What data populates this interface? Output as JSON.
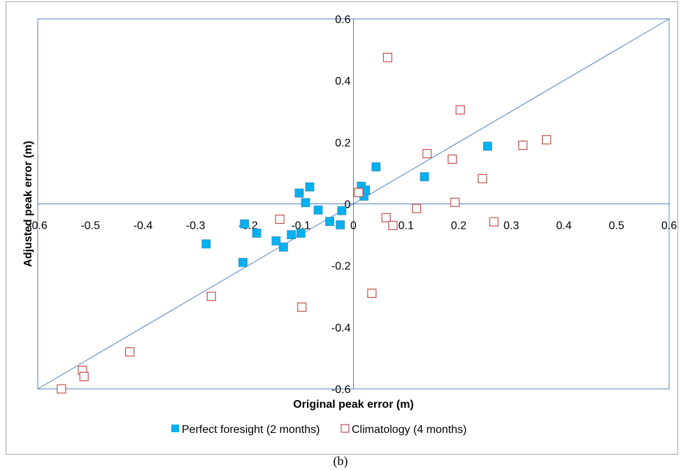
{
  "chart_data": {
    "type": "scatter",
    "xlabel": "Original peak error (m)",
    "ylabel": "Adjusted peak error (m)",
    "xlim": [
      -0.6,
      0.6
    ],
    "ylim": [
      -0.6,
      0.6
    ],
    "x_ticks": [
      "-0.6",
      "-0.5",
      "-0.4",
      "-0.3",
      "-0.2",
      "-0.1",
      "0",
      "0.1",
      "0.2",
      "0.3",
      "0.4",
      "0.5",
      "0.6"
    ],
    "y_ticks": [
      "-0.6",
      "-0.4",
      "-0.2",
      "0",
      "0.2",
      "0.4",
      "0.6"
    ],
    "legend_position": "bottom",
    "reference_line": {
      "x": [
        -0.6,
        0.6
      ],
      "y": [
        -0.6,
        0.6
      ],
      "color": "#4f81bd"
    },
    "series": [
      {
        "name": "Perfect foresight (2 months)",
        "marker": "filled-square",
        "color": "#00b0f0",
        "points": [
          [
            -0.28,
            -0.13
          ],
          [
            -0.21,
            -0.19
          ],
          [
            -0.207,
            -0.065
          ],
          [
            -0.184,
            -0.095
          ],
          [
            -0.147,
            -0.12
          ],
          [
            -0.133,
            -0.14
          ],
          [
            -0.118,
            -0.1
          ],
          [
            -0.1,
            -0.095
          ],
          [
            -0.103,
            0.035
          ],
          [
            -0.091,
            0.004
          ],
          [
            -0.083,
            0.055
          ],
          [
            -0.067,
            -0.02
          ],
          [
            -0.045,
            -0.057
          ],
          [
            -0.025,
            -0.068
          ],
          [
            -0.022,
            -0.022
          ],
          [
            0.015,
            0.057
          ],
          [
            0.02,
            0.025
          ],
          [
            0.023,
            0.045
          ],
          [
            0.043,
            0.12
          ],
          [
            0.135,
            0.088
          ],
          [
            0.255,
            0.187
          ]
        ]
      },
      {
        "name": "Climatology (4 months)",
        "marker": "open-square",
        "color": "#c0504d",
        "points": [
          [
            -0.555,
            -0.6
          ],
          [
            -0.515,
            -0.54
          ],
          [
            -0.512,
            -0.56
          ],
          [
            -0.425,
            -0.48
          ],
          [
            -0.27,
            -0.3
          ],
          [
            -0.14,
            -0.05
          ],
          [
            -0.098,
            -0.335
          ],
          [
            0.01,
            0.037
          ],
          [
            0.035,
            -0.29
          ],
          [
            0.062,
            -0.045
          ],
          [
            0.065,
            0.475
          ],
          [
            0.075,
            -0.07
          ],
          [
            0.12,
            -0.015
          ],
          [
            0.14,
            0.163
          ],
          [
            0.188,
            0.145
          ],
          [
            0.193,
            0.005
          ],
          [
            0.203,
            0.305
          ],
          [
            0.245,
            0.082
          ],
          [
            0.267,
            -0.058
          ],
          [
            0.322,
            0.19
          ],
          [
            0.367,
            0.208
          ]
        ]
      }
    ]
  },
  "caption": "(b)"
}
